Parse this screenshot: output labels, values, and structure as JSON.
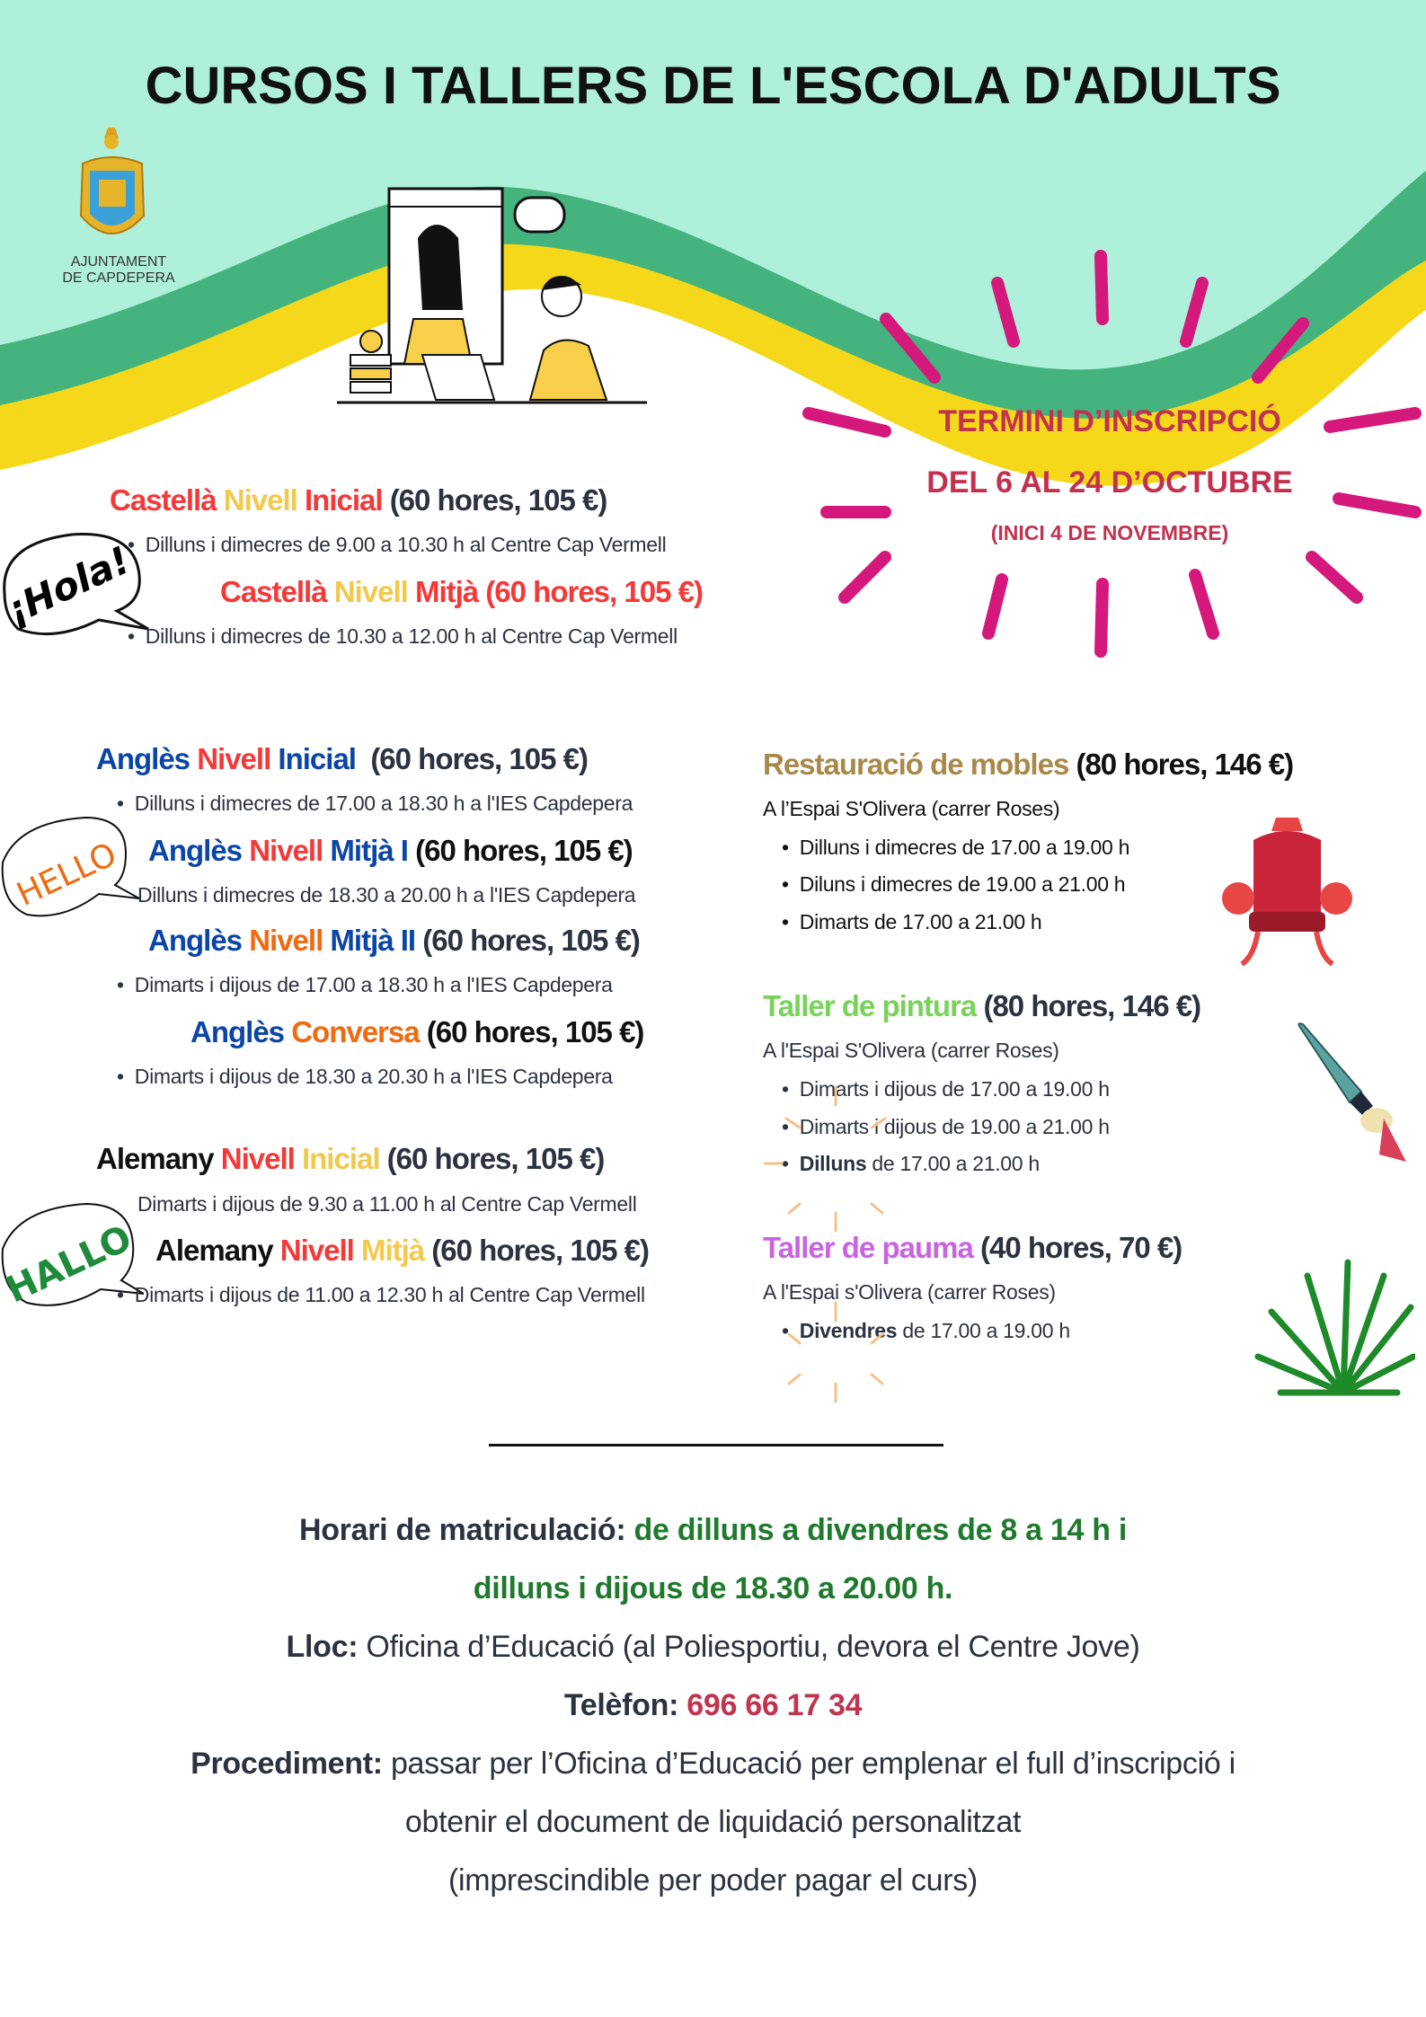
{
  "header": {
    "title": "CURSOS I TALLERS DE L'ESCOLA D'ADULTS",
    "logo_text_line1": "AJUNTAMENT",
    "logo_text_line2": "DE CAPDEPERA"
  },
  "deadline": {
    "line1": "TERMINI D’INSCRIPCIÓ",
    "line2": "DEL 6 AL 24 D’OCTUBRE",
    "line3": "(INICI 4 DE NOVEMBRE)"
  },
  "bubbles": {
    "spanish": "¡Hola!",
    "english": "HELLO",
    "german": "HALLO"
  },
  "courses_left": [
    {
      "parts": [
        "Castellà",
        "Nivell",
        "Inicial",
        "(60 hores, 105 €)"
      ],
      "detail": "Dilluns i dimecres de 9.00 a 10.30 h al Centre Cap Vermell"
    },
    {
      "parts": [
        "Castellà",
        "Nivell",
        "Mitjà (60 hores, 105 €)"
      ],
      "detail": "Dilluns i dimecres de 10.30 a 12.00 h al Centre Cap Vermell"
    },
    {
      "parts": [
        "Anglès",
        "Nivell",
        "Inicial",
        "(60 hores, 105 €)"
      ],
      "detail": "Dilluns i dimecres de 17.00 a 18.30 h a l'IES Capdepera"
    },
    {
      "parts": [
        "Anglès",
        "Nivell",
        "Mitjà I",
        "(60 hores, 105 €)"
      ],
      "detail": "Dilluns i dimecres de 18.30 a 20.00 h a l'IES Capdepera"
    },
    {
      "parts": [
        "Anglès",
        "Nivell",
        "Mitjà II",
        "(60 hores, 105 €)"
      ],
      "detail": "Dimarts i dijous de 17.00 a 18.30 h a l'IES Capdepera"
    },
    {
      "parts": [
        "Anglès",
        "Conversa",
        "(60 hores, 105 €)"
      ],
      "detail": "Dimarts i dijous de 18.30 a 20.30 h a l'IES Capdepera"
    },
    {
      "parts": [
        "Alemany",
        "Nivell",
        "Inicial",
        "(60 hores, 105 €)"
      ],
      "detail": "Dimarts i dijous de 9.30 a 11.00 h al Centre Cap Vermell"
    },
    {
      "parts": [
        "Alemany",
        "Nivell",
        "Mitjà",
        "(60 hores, 105 €)"
      ],
      "detail": "Dimarts i dijous de 11.00 a 12.30 h al Centre Cap Vermell"
    }
  ],
  "workshops": [
    {
      "name": "Restauració de mobles",
      "info": "(80 hores, 146 €)",
      "place": "A l’Espai S'Olivera (carrer Roses)",
      "sessions": [
        "Dilluns i dimecres de 17.00 a 19.00 h",
        "Diluns i dimecres de 19.00 a 21.00 h",
        "Dimarts de 17.00 a 21.00 h"
      ]
    },
    {
      "name": "Taller de pintura",
      "info": "(80 hores, 146 €)",
      "place": "A l'Espai S'Olivera (carrer Roses)",
      "sessions": [
        "Dimarts i dijous de 17.00 a 19.00 h",
        "Dimarts i dijous de 19.00 a 21.00 h"
      ],
      "session3_bold": "Dilluns",
      "session3_rest": " de 17.00 a 21.00 h"
    },
    {
      "name": "Taller de pauma",
      "info": "(40  hores, 70 €)",
      "place": "A l'Espai s'Olivera (carrer Roses)",
      "session1_bold": "Divendres",
      "session1_rest": " de 17.00 a 19.00 h"
    }
  ],
  "footer": {
    "schedule_label": "Horari de matriculació:",
    "schedule_value1": " de dilluns a divendres de 8 a 14 h i",
    "schedule_value2": "dilluns i dijous de 18.30 a 20.00 h.",
    "place_label": "Lloc:",
    "place_value": " Oficina d’Educació (al Poliesportiu, devora el Centre Jove)",
    "phone_label": "Telèfon:",
    "phone_value": " 696 66 17 34",
    "procedure_label": "Procediment:",
    "procedure_value": " passar per l’Oficina d’Educació per emplenar el full d’inscripció i",
    "procedure_line2": "obtenir el document de liquidació personalitzat",
    "procedure_line3": "(imprescindible per poder pagar el curs)"
  },
  "colors": {
    "mint": "#aef0da",
    "green_band": "#45b37e",
    "yellow_band": "#f5d81a",
    "ray_pink": "#d4187c",
    "deadline_text": "#c2324f",
    "red": "#f53838",
    "yellow": "#f2c94c",
    "blue": "#0b45a8",
    "orange": "#f06a10",
    "gold": "#a8894a",
    "light_green": "#78d35a",
    "purple": "#c865e0",
    "dark_green": "#1f7a2e",
    "phone": "#c0344e",
    "text": "#2b3240"
  }
}
